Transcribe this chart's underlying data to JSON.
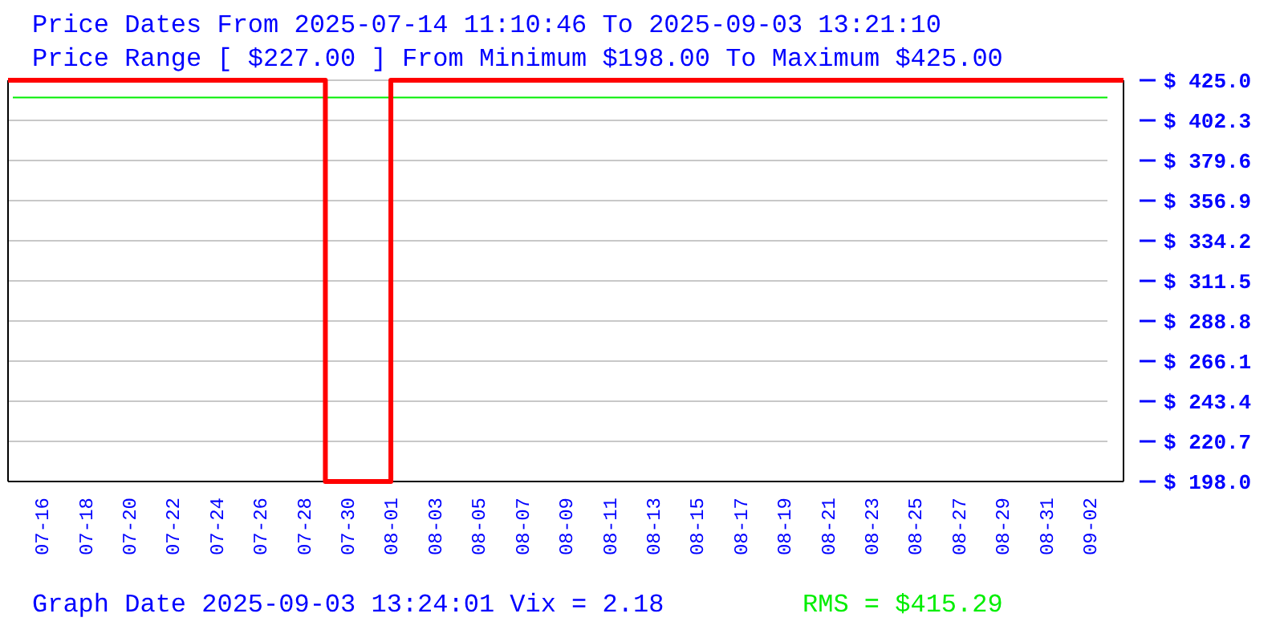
{
  "chart_data": {
    "type": "step",
    "title": "Price Dates From 2025-07-14 11:10:46 To 2025-09-03 13:21:10",
    "subtitle": "Price Range [ $227.00 ] From Minimum $198.00 To Maximum $425.00",
    "annotations": [
      "Graph Date 2025-09-03 13:24:01 Vix = 2.18"
    ],
    "x": [
      "2025-07-14T11:10",
      "2025-07-29",
      "2025-08-01",
      "2025-09-03T13:21"
    ],
    "series": [
      {
        "color": "#ff0000",
        "values": [
          425,
          198,
          425,
          425
        ]
      }
    ],
    "xlim": [
      "2025-07-14T11:10",
      "2025-09-03T13:21"
    ],
    "xticks": [
      {
        "value": "2025-07-16",
        "label": "07-16"
      },
      {
        "value": "2025-07-18",
        "label": "07-18"
      },
      {
        "value": "2025-07-20",
        "label": "07-20"
      },
      {
        "value": "2025-07-22",
        "label": "07-22"
      },
      {
        "value": "2025-07-24",
        "label": "07-24"
      },
      {
        "value": "2025-07-26",
        "label": "07-26"
      },
      {
        "value": "2025-07-28",
        "label": "07-28"
      },
      {
        "value": "2025-07-30",
        "label": "07-30"
      },
      {
        "value": "2025-08-01",
        "label": "08-01"
      },
      {
        "value": "2025-08-03",
        "label": "08-03"
      },
      {
        "value": "2025-08-05",
        "label": "08-05"
      },
      {
        "value": "2025-08-07",
        "label": "08-07"
      },
      {
        "value": "2025-08-09",
        "label": "08-09"
      },
      {
        "value": "2025-08-11",
        "label": "08-11"
      },
      {
        "value": "2025-08-13",
        "label": "08-13"
      },
      {
        "value": "2025-08-15",
        "label": "08-15"
      },
      {
        "value": "2025-08-17",
        "label": "08-17"
      },
      {
        "value": "2025-08-19",
        "label": "08-19"
      },
      {
        "value": "2025-08-21",
        "label": "08-21"
      },
      {
        "value": "2025-08-23",
        "label": "08-23"
      },
      {
        "value": "2025-08-25",
        "label": "08-25"
      },
      {
        "value": "2025-08-27",
        "label": "08-27"
      },
      {
        "value": "2025-08-29",
        "label": "08-29"
      },
      {
        "value": "2025-08-31",
        "label": "08-31"
      },
      {
        "value": "2025-09-02",
        "label": "09-02"
      }
    ],
    "ylim": [
      198,
      425
    ],
    "yticks": [
      {
        "value": 198,
        "label": "$ 198.0"
      },
      {
        "value": 220.7,
        "label": "$ 220.7"
      },
      {
        "value": 243.4,
        "label": "$ 243.4"
      },
      {
        "value": 266.1,
        "label": "$ 266.1"
      },
      {
        "value": 288.8,
        "label": "$ 288.8"
      },
      {
        "value": 311.5,
        "label": "$ 311.5"
      },
      {
        "value": 334.2,
        "label": "$ 334.2"
      },
      {
        "value": 356.9,
        "label": "$ 356.9"
      },
      {
        "value": 379.6,
        "label": "$ 379.6"
      },
      {
        "value": 402.3,
        "label": "$ 402.3"
      },
      {
        "value": 425,
        "label": "$ 425.0"
      }
    ],
    "grid": "y",
    "ref_lines": [
      {
        "axis": "y",
        "value": 415.29,
        "label": "RMS = $415.29",
        "color": "#00ee00"
      }
    ]
  }
}
